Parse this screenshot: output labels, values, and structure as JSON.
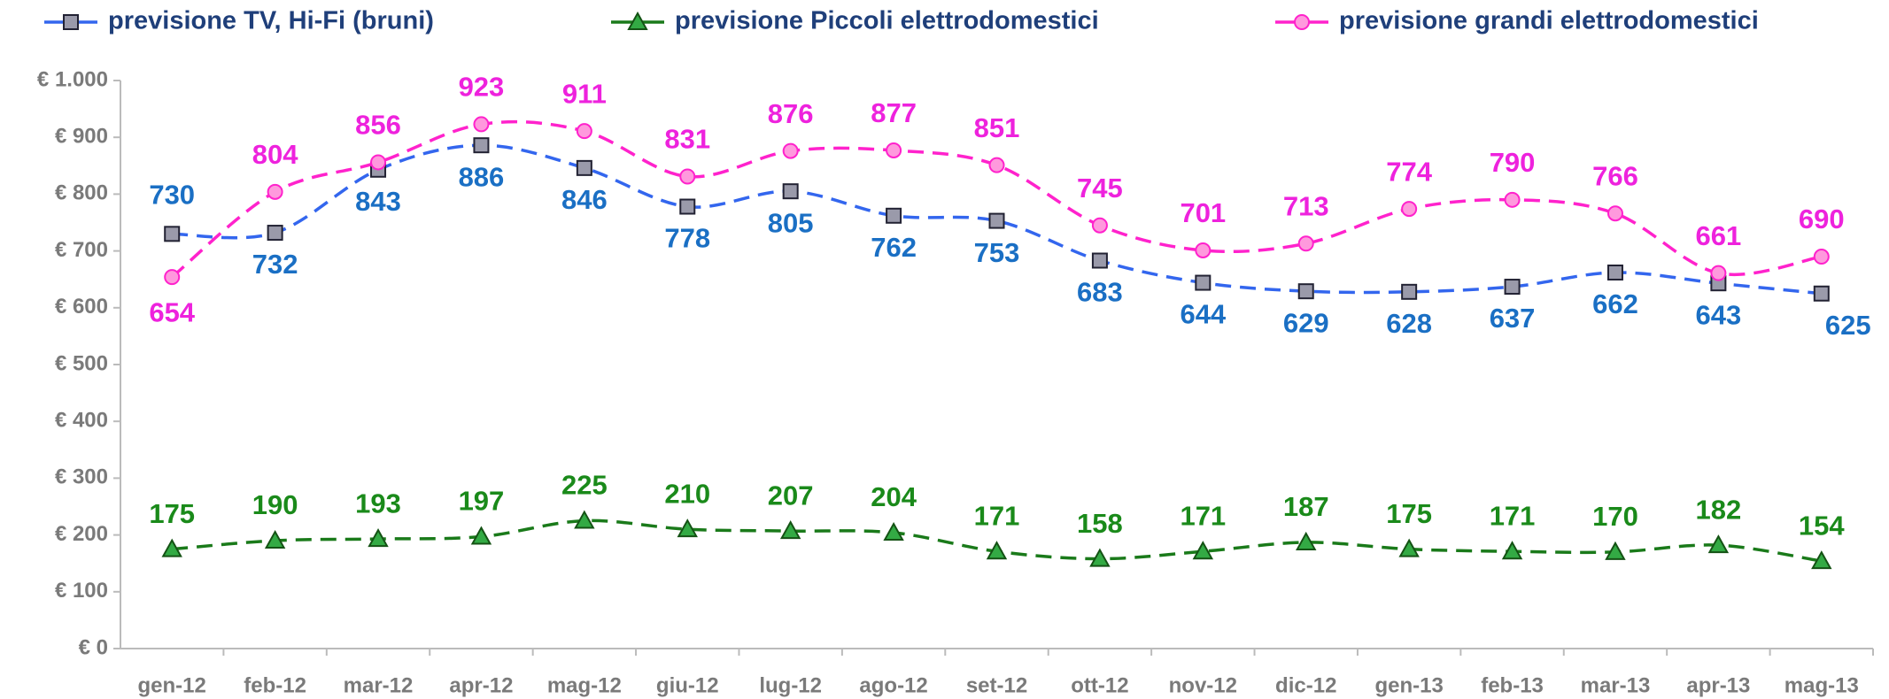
{
  "chart_data": {
    "type": "line",
    "categories": [
      "gen-12",
      "feb-12",
      "mar-12",
      "apr-12",
      "mag-12",
      "giu-12",
      "lug-12",
      "ago-12",
      "set-12",
      "ott-12",
      "nov-12",
      "dic-12",
      "gen-13",
      "feb-13",
      "mar-13",
      "apr-13",
      "mag-13"
    ],
    "series": [
      {
        "name": "previsione TV, Hi-Fi (bruni)",
        "color": "#3366ee",
        "marker": "square",
        "values": [
          730,
          732,
          843,
          886,
          846,
          778,
          805,
          762,
          753,
          683,
          644,
          629,
          628,
          637,
          662,
          643,
          625
        ]
      },
      {
        "name": "previsione Piccoli elettrodomestici",
        "color": "#1a7a1a",
        "marker": "triangle",
        "values": [
          175,
          190,
          193,
          197,
          225,
          210,
          207,
          204,
          171,
          158,
          171,
          187,
          175,
          171,
          170,
          182,
          154
        ]
      },
      {
        "name": "previsione grandi elettrodomestici",
        "color": "#ff22cc",
        "marker": "circle",
        "values": [
          654,
          804,
          856,
          923,
          911,
          831,
          876,
          877,
          851,
          745,
          701,
          713,
          774,
          790,
          766,
          661,
          690
        ]
      }
    ],
    "ylim": [
      0,
      1000
    ],
    "yticks": [
      {
        "value": 0,
        "label": "€ 0"
      },
      {
        "value": 100,
        "label": "€ 100"
      },
      {
        "value": 200,
        "label": "€ 200"
      },
      {
        "value": 300,
        "label": "€ 300"
      },
      {
        "value": 400,
        "label": "€ 400"
      },
      {
        "value": 500,
        "label": "€ 500"
      },
      {
        "value": 600,
        "label": "€ 600"
      },
      {
        "value": 700,
        "label": "€ 700"
      },
      {
        "value": 800,
        "label": "€ 800"
      },
      {
        "value": 900,
        "label": "€ 900"
      },
      {
        "value": 1000,
        "label": "€ 1.000"
      }
    ],
    "legend": "top"
  }
}
